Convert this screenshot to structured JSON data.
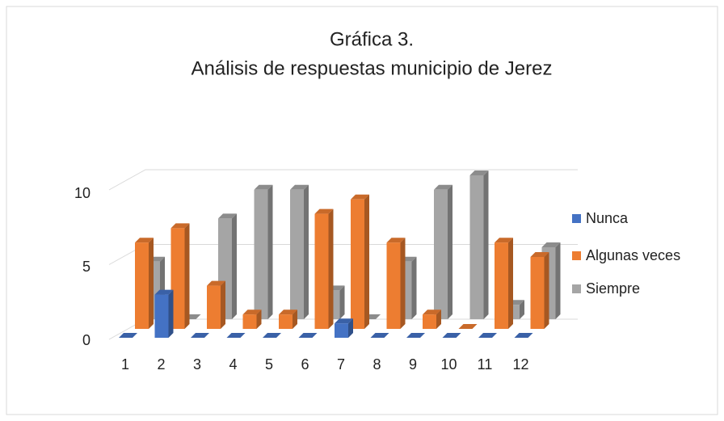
{
  "chart_data": {
    "type": "bar3d",
    "title": "Gráfica 3.",
    "subtitle": "Análisis de respuestas municipio de Jerez",
    "categories": [
      "1",
      "2",
      "3",
      "4",
      "5",
      "6",
      "7",
      "8",
      "9",
      "10",
      "11",
      "12"
    ],
    "series": [
      {
        "name": "Nunca",
        "color": "#4472c4",
        "values": [
          0,
          3,
          0,
          0,
          0,
          0,
          1,
          0,
          0,
          0,
          0,
          0
        ]
      },
      {
        "name": "Algunas veces",
        "color": "#ed7d31",
        "values": [
          6,
          7,
          3,
          1,
          1,
          8,
          9,
          6,
          1,
          0,
          6,
          5
        ]
      },
      {
        "name": "Siempre",
        "color": "#a5a5a5",
        "values": [
          4,
          0,
          7,
          9,
          9,
          2,
          0,
          4,
          9,
          10,
          1,
          5
        ]
      }
    ],
    "ylim": [
      0,
      10
    ],
    "yticks": [
      0,
      5,
      10
    ],
    "grid": true,
    "legend": "right"
  }
}
